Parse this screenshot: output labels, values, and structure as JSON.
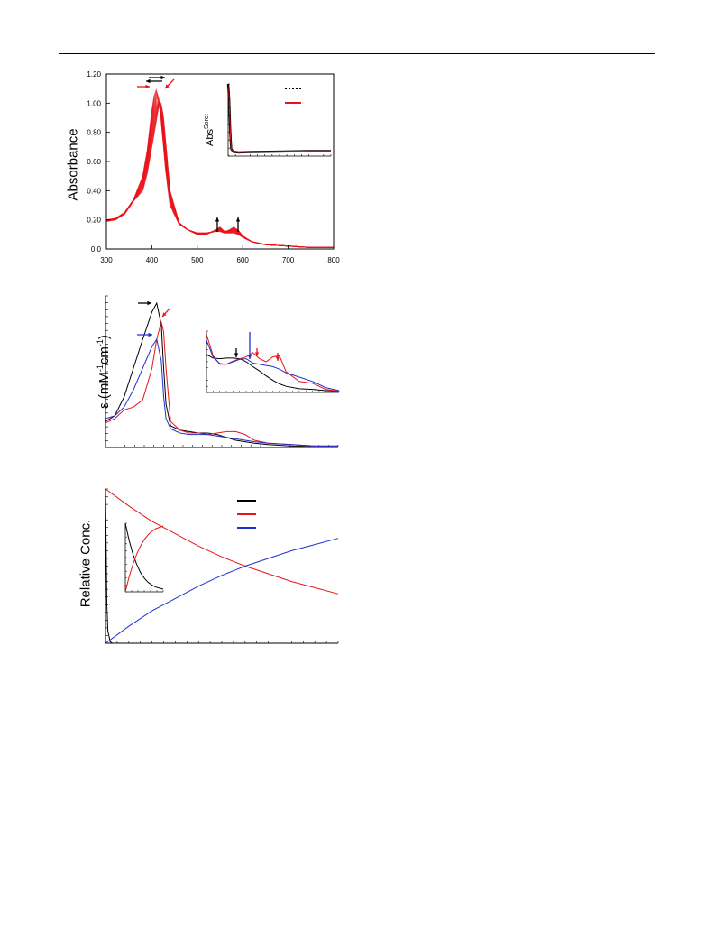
{
  "page": {
    "header_rule": true
  },
  "panel_a": {
    "ylabel": "Absorbance",
    "inset_ylabel_main": "Abs",
    "inset_ylabel_sup": "Soret"
  },
  "panel_b": {
    "ylabel_prefix": "ε (mM",
    "ylabel_sup1": "-1",
    "ylabel_mid": "cm",
    "ylabel_sup2": "-1",
    "ylabel_suffix": ")"
  },
  "panel_c": {
    "ylabel": "Relative Conc."
  },
  "chart_data": [
    {
      "type": "line",
      "id": "panel-a",
      "xlabel": "",
      "ylabel": "Absorbance",
      "xlim": [
        300,
        800
      ],
      "ylim": [
        0.0,
        1.2
      ],
      "x_ticks": [
        "300",
        "400",
        "500",
        "600",
        "700",
        "800"
      ],
      "y_ticks": [
        "0.0",
        "0.20",
        "0.40",
        "0.60",
        "0.80",
        "1.00",
        "1.20"
      ],
      "grid": false,
      "colors": {
        "traces": "#e8141b",
        "arrows_black": "#000000",
        "arrows_red": "#e8141b"
      },
      "series": [
        {
          "x": [
            300,
            320,
            340,
            360,
            380,
            390,
            400,
            405,
            410,
            415,
            420,
            430,
            440,
            460,
            480,
            500,
            520,
            540,
            550,
            560,
            570,
            580,
            590,
            600,
            620,
            650,
            700,
            750,
            800
          ],
          "values": [
            0.2,
            0.21,
            0.25,
            0.34,
            0.5,
            0.68,
            0.95,
            1.05,
            1.09,
            1.03,
            0.9,
            0.55,
            0.3,
            0.17,
            0.13,
            0.11,
            0.11,
            0.12,
            0.12,
            0.11,
            0.11,
            0.11,
            0.1,
            0.08,
            0.05,
            0.03,
            0.02,
            0.01,
            0.01
          ]
        },
        {
          "x": [
            300,
            320,
            340,
            360,
            380,
            390,
            400,
            410,
            415,
            420,
            425,
            430,
            440,
            460,
            480,
            500,
            520,
            540,
            550,
            560,
            570,
            580,
            590,
            600,
            620,
            650,
            700,
            750,
            800
          ],
          "values": [
            0.19,
            0.2,
            0.24,
            0.33,
            0.4,
            0.52,
            0.7,
            0.88,
            0.98,
            1.0,
            0.92,
            0.75,
            0.4,
            0.18,
            0.13,
            0.1,
            0.1,
            0.13,
            0.15,
            0.12,
            0.13,
            0.15,
            0.13,
            0.09,
            0.05,
            0.03,
            0.02,
            0.01,
            0.01
          ]
        }
      ],
      "inset": {
        "ylabel": "AbsSoret",
        "legend": [
          {
            "style": "dotted",
            "color": "#000000"
          },
          {
            "style": "solid",
            "color": "#e8141b"
          }
        ],
        "series": [
          {
            "x": [
              0,
              1,
              2,
              3,
              5,
              10,
              20,
              40,
              60,
              80,
              100
            ],
            "values": [
              1.0,
              0.8,
              0.35,
              0.1,
              0.06,
              0.05,
              0.055,
              0.06,
              0.065,
              0.07,
              0.07
            ],
            "color": "#000000"
          },
          {
            "x": [
              0,
              1,
              2,
              3,
              5,
              10,
              20,
              40,
              60,
              80,
              100
            ],
            "values": [
              1.0,
              0.8,
              0.35,
              0.1,
              0.06,
              0.05,
              0.055,
              0.06,
              0.065,
              0.07,
              0.07
            ],
            "color": "#e8141b"
          }
        ]
      }
    },
    {
      "type": "line",
      "id": "panel-b",
      "ylabel": "ε (mM-1cm-1)",
      "xlim": [
        300,
        800
      ],
      "ylim": [
        0,
        1
      ],
      "grid": false,
      "series": [
        {
          "color": "#000000",
          "x": [
            300,
            320,
            340,
            360,
            380,
            400,
            410,
            420,
            425,
            430,
            440,
            460,
            480,
            500,
            520,
            540,
            560,
            580,
            600,
            620,
            650,
            700,
            750,
            800
          ],
          "values": [
            0.18,
            0.22,
            0.35,
            0.55,
            0.75,
            0.94,
            1.0,
            0.85,
            0.55,
            0.3,
            0.15,
            0.12,
            0.11,
            0.1,
            0.1,
            0.09,
            0.07,
            0.05,
            0.04,
            0.03,
            0.02,
            0.01,
            0.01,
            0.01
          ]
        },
        {
          "color": "#e8141b",
          "x": [
            300,
            320,
            340,
            360,
            380,
            400,
            410,
            420,
            425,
            430,
            440,
            460,
            480,
            500,
            520,
            540,
            560,
            580,
            600,
            620,
            650,
            700,
            750,
            800
          ],
          "values": [
            0.17,
            0.2,
            0.26,
            0.28,
            0.33,
            0.55,
            0.75,
            0.87,
            0.8,
            0.55,
            0.18,
            0.12,
            0.1,
            0.1,
            0.09,
            0.1,
            0.11,
            0.11,
            0.09,
            0.05,
            0.03,
            0.02,
            0.01,
            0.01
          ]
        },
        {
          "color": "#2030d0",
          "x": [
            300,
            320,
            340,
            360,
            380,
            400,
            410,
            420,
            425,
            430,
            440,
            460,
            480,
            500,
            520,
            540,
            560,
            580,
            600,
            620,
            650,
            700,
            750,
            800
          ],
          "values": [
            0.2,
            0.22,
            0.28,
            0.4,
            0.55,
            0.7,
            0.75,
            0.6,
            0.35,
            0.2,
            0.13,
            0.1,
            0.09,
            0.09,
            0.09,
            0.08,
            0.07,
            0.06,
            0.05,
            0.04,
            0.03,
            0.02,
            0.01,
            0.01
          ]
        }
      ],
      "inset": {
        "series": [
          {
            "color": "#000000",
            "x": [
              0,
              5,
              10,
              15,
              20,
              25,
              30,
              35,
              40,
              45,
              50,
              55,
              60,
              70,
              80,
              90,
              100
            ],
            "values": [
              0.62,
              0.56,
              0.55,
              0.56,
              0.56,
              0.55,
              0.5,
              0.42,
              0.35,
              0.27,
              0.2,
              0.14,
              0.1,
              0.06,
              0.05,
              0.03,
              0.02
            ]
          },
          {
            "color": "#e8141b",
            "x": [
              0,
              5,
              10,
              15,
              20,
              25,
              30,
              35,
              40,
              45,
              50,
              55,
              60,
              70,
              80,
              90,
              100
            ],
            "values": [
              0.95,
              0.6,
              0.46,
              0.46,
              0.51,
              0.55,
              0.58,
              0.65,
              0.55,
              0.5,
              0.58,
              0.6,
              0.34,
              0.18,
              0.15,
              0.05,
              0.02
            ]
          },
          {
            "color": "#2030d0",
            "x": [
              0,
              5,
              10,
              15,
              20,
              25,
              30,
              35,
              40,
              45,
              50,
              55,
              60,
              70,
              80,
              90,
              100
            ],
            "values": [
              0.85,
              0.58,
              0.47,
              0.46,
              0.5,
              0.54,
              0.55,
              0.48,
              0.46,
              0.44,
              0.42,
              0.38,
              0.32,
              0.25,
              0.18,
              0.08,
              0.03
            ]
          }
        ]
      }
    },
    {
      "type": "line",
      "id": "panel-c",
      "ylabel": "Relative Conc.",
      "xlim": [
        0,
        100
      ],
      "ylim": [
        0,
        1
      ],
      "grid": false,
      "legend": [
        {
          "color": "#000000"
        },
        {
          "color": "#e8141b"
        },
        {
          "color": "#2030d0"
        }
      ],
      "series": [
        {
          "color": "#000000",
          "x": [
            0,
            0.3,
            0.6,
            1,
            2,
            3
          ],
          "values": [
            1.0,
            0.6,
            0.25,
            0.08,
            0.01,
            0.0
          ]
        },
        {
          "color": "#e8141b",
          "x": [
            0,
            10,
            20,
            30,
            40,
            50,
            60,
            70,
            80,
            90,
            100
          ],
          "values": [
            1.0,
            0.89,
            0.79,
            0.71,
            0.63,
            0.56,
            0.5,
            0.45,
            0.4,
            0.36,
            0.32
          ]
        },
        {
          "color": "#2030d0",
          "x": [
            0,
            10,
            20,
            30,
            40,
            50,
            60,
            70,
            80,
            90,
            100
          ],
          "values": [
            0.0,
            0.11,
            0.21,
            0.29,
            0.37,
            0.44,
            0.5,
            0.55,
            0.6,
            0.64,
            0.68
          ]
        }
      ],
      "inset": {
        "series": [
          {
            "color": "#000000",
            "x": [
              0,
              10,
              20,
              30,
              40,
              50,
              60,
              70,
              80,
              100
            ],
            "values": [
              1.0,
              0.75,
              0.55,
              0.4,
              0.28,
              0.2,
              0.14,
              0.1,
              0.07,
              0.04
            ]
          },
          {
            "color": "#e8141b",
            "x": [
              0,
              10,
              20,
              30,
              40,
              50,
              60,
              70,
              80,
              100
            ],
            "values": [
              0.0,
              0.22,
              0.4,
              0.55,
              0.67,
              0.76,
              0.83,
              0.88,
              0.92,
              0.96
            ]
          }
        ]
      }
    }
  ]
}
